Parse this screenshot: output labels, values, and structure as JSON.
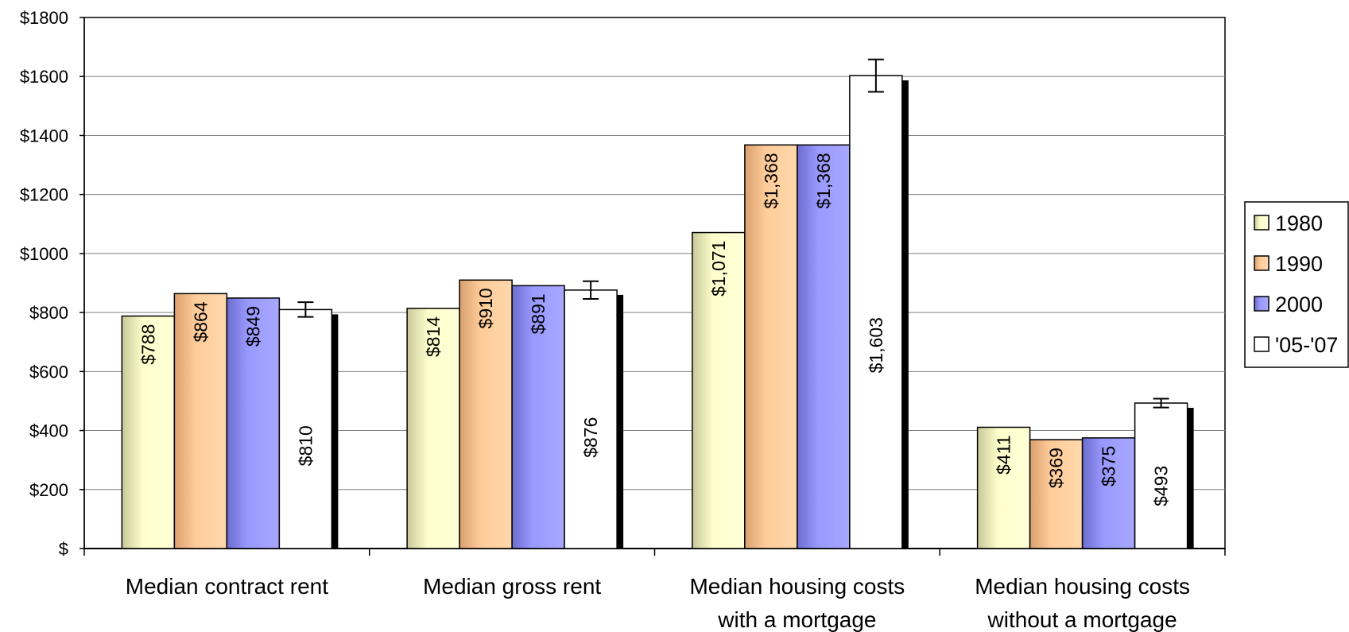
{
  "chart_data": {
    "type": "bar",
    "title": "",
    "xlabel": "",
    "ylabel": "",
    "ylim": [
      0,
      1800
    ],
    "yticks": [
      0,
      200,
      400,
      600,
      800,
      1000,
      1200,
      1400,
      1600,
      1800
    ],
    "ytick_labels": [
      "$",
      "$200",
      "$400",
      "$600",
      "$800",
      "$1000",
      "$1200",
      "$1400",
      "$1600",
      "$1800"
    ],
    "grid": true,
    "legend_position": "right",
    "categories": [
      [
        "Median contract rent"
      ],
      [
        "Median gross rent"
      ],
      [
        "Median housing costs",
        "with a mortgage"
      ],
      [
        "Median housing costs",
        "without a mortgage"
      ]
    ],
    "series": [
      {
        "name": "1980",
        "color": "#ffffcc",
        "values": [
          788,
          814,
          1071,
          411
        ],
        "labels": [
          "$788",
          "$814",
          "$1,071",
          "$411"
        ],
        "shadow": false,
        "errors": null
      },
      {
        "name": "1990",
        "color": "#ffcc99",
        "values": [
          864,
          910,
          1368,
          369
        ],
        "labels": [
          "$864",
          "$910",
          "$1,368",
          "$369"
        ],
        "shadow": false,
        "errors": null
      },
      {
        "name": "2000",
        "color": "#9999ff",
        "values": [
          849,
          891,
          1368,
          375
        ],
        "labels": [
          "$849",
          "$891",
          "$1,368",
          "$375"
        ],
        "shadow": false,
        "errors": null
      },
      {
        "name": "'05-'07",
        "color": "#ffffff",
        "values": [
          810,
          876,
          1603,
          493
        ],
        "labels": [
          "$810",
          "$876",
          "$1,603",
          "$493"
        ],
        "shadow": true,
        "errors": [
          25,
          30,
          55,
          15
        ]
      }
    ]
  }
}
